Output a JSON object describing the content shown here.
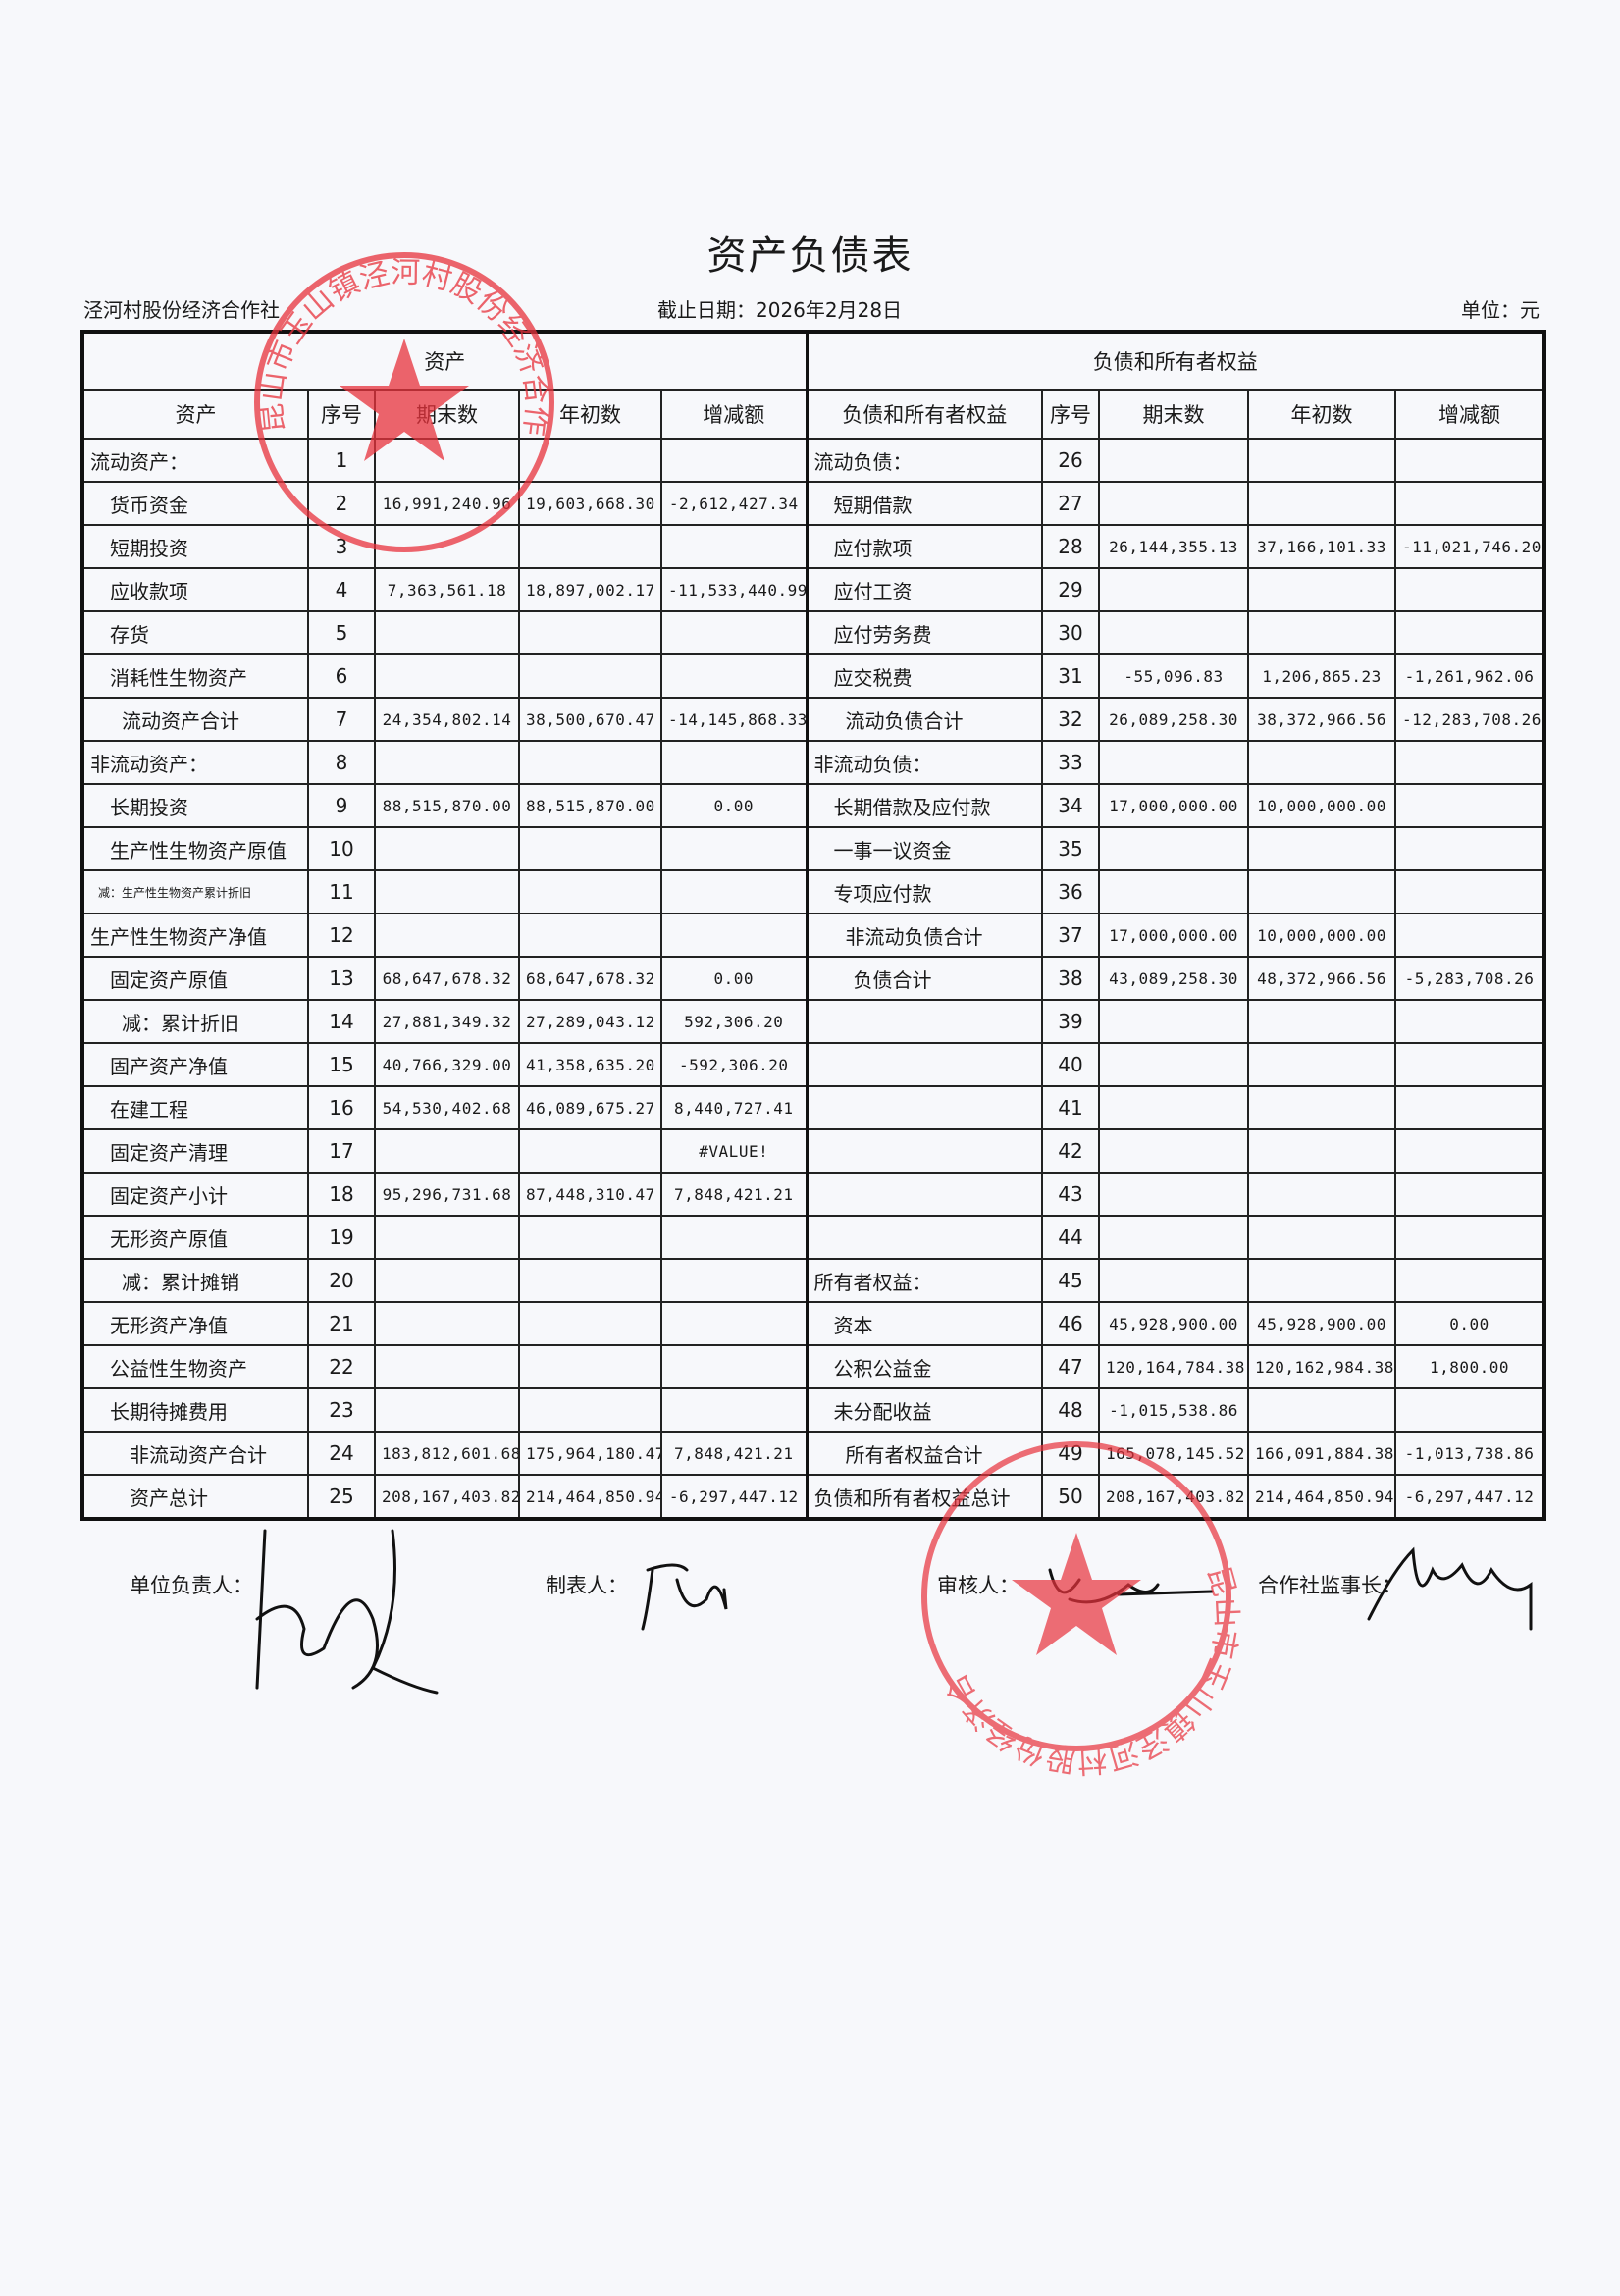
{
  "title": "资产负债表",
  "organization": "泾河村股份经济合作社",
  "date_line": "截止日期：2026年2月28日",
  "unit": "单位：元",
  "stamp_color": "#e8323c",
  "assets_section": {
    "group_header": "资产",
    "columns": [
      "资产",
      "序号",
      "期末数",
      "年初数",
      "增减额"
    ],
    "rows": [
      [
        "流动资产：",
        "1",
        "",
        "",
        ""
      ],
      [
        "货币资金",
        "2",
        "16,991,240.96",
        "19,603,668.30",
        "-2,612,427.34"
      ],
      [
        "短期投资",
        "3",
        "",
        "",
        ""
      ],
      [
        "应收款项",
        "4",
        "7,363,561.18",
        "18,897,002.17",
        "-11,533,440.99"
      ],
      [
        "存货",
        "5",
        "",
        "",
        ""
      ],
      [
        "消耗性生物资产",
        "6",
        "",
        "",
        ""
      ],
      [
        "流动资产合计",
        "7",
        "24,354,802.14",
        "38,500,670.47",
        "-14,145,868.33"
      ],
      [
        "非流动资产：",
        "8",
        "",
        "",
        ""
      ],
      [
        "长期投资",
        "9",
        "88,515,870.00",
        "88,515,870.00",
        "0.00"
      ],
      [
        "生产性生物资产原值",
        "10",
        "",
        "",
        ""
      ],
      [
        "减：生产性生物资产累计折旧",
        "11",
        "",
        "",
        ""
      ],
      [
        "生产性生物资产净值",
        "12",
        "",
        "",
        ""
      ],
      [
        "固定资产原值",
        "13",
        "68,647,678.32",
        "68,647,678.32",
        "0.00"
      ],
      [
        "减：累计折旧",
        "14",
        "27,881,349.32",
        "27,289,043.12",
        "592,306.20"
      ],
      [
        "固产资产净值",
        "15",
        "40,766,329.00",
        "41,358,635.20",
        "-592,306.20"
      ],
      [
        "在建工程",
        "16",
        "54,530,402.68",
        "46,089,675.27",
        "8,440,727.41"
      ],
      [
        "固定资产清理",
        "17",
        "",
        "",
        "#VALUE!"
      ],
      [
        "固定资产小计",
        "18",
        "95,296,731.68",
        "87,448,310.47",
        "7,848,421.21"
      ],
      [
        "无形资产原值",
        "19",
        "",
        "",
        ""
      ],
      [
        "减：累计摊销",
        "20",
        "",
        "",
        ""
      ],
      [
        "无形资产净值",
        "21",
        "",
        "",
        ""
      ],
      [
        "公益性生物资产",
        "22",
        "",
        "",
        ""
      ],
      [
        "长期待摊费用",
        "23",
        "",
        "",
        ""
      ],
      [
        "非流动资产合计",
        "24",
        "183,812,601.68",
        "175,964,180.47",
        "7,848,421.21"
      ],
      [
        "资产总计",
        "25",
        "208,167,403.82",
        "214,464,850.94",
        "-6,297,447.12"
      ]
    ]
  },
  "liabilities_section": {
    "group_header": "负债和所有者权益",
    "columns": [
      "负债和所有者权益",
      "序号",
      "期末数",
      "年初数",
      "增减额"
    ],
    "rows": [
      [
        "流动负债：",
        "26",
        "",
        "",
        ""
      ],
      [
        "短期借款",
        "27",
        "",
        "",
        ""
      ],
      [
        "应付款项",
        "28",
        "26,144,355.13",
        "37,166,101.33",
        "-11,021,746.20"
      ],
      [
        "应付工资",
        "29",
        "",
        "",
        ""
      ],
      [
        "应付劳务费",
        "30",
        "",
        "",
        ""
      ],
      [
        "应交税费",
        "31",
        "-55,096.83",
        "1,206,865.23",
        "-1,261,962.06"
      ],
      [
        "流动负债合计",
        "32",
        "26,089,258.30",
        "38,372,966.56",
        "-12,283,708.26"
      ],
      [
        "非流动负债：",
        "33",
        "",
        "",
        ""
      ],
      [
        "长期借款及应付款",
        "34",
        "17,000,000.00",
        "10,000,000.00",
        ""
      ],
      [
        "一事一议资金",
        "35",
        "",
        "",
        ""
      ],
      [
        "专项应付款",
        "36",
        "",
        "",
        ""
      ],
      [
        "非流动负债合计",
        "37",
        "17,000,000.00",
        "10,000,000.00",
        ""
      ],
      [
        "负债合计",
        "38",
        "43,089,258.30",
        "48,372,966.56",
        "-5,283,708.26"
      ],
      [
        "",
        "39",
        "",
        "",
        ""
      ],
      [
        "",
        "40",
        "",
        "",
        ""
      ],
      [
        "",
        "41",
        "",
        "",
        ""
      ],
      [
        "",
        "42",
        "",
        "",
        ""
      ],
      [
        "",
        "43",
        "",
        "",
        ""
      ],
      [
        "",
        "44",
        "",
        "",
        ""
      ],
      [
        "所有者权益：",
        "45",
        "",
        "",
        ""
      ],
      [
        "资本",
        "46",
        "45,928,900.00",
        "45,928,900.00",
        "0.00"
      ],
      [
        "公积公益金",
        "47",
        "120,164,784.38",
        "120,162,984.38",
        "1,800.00"
      ],
      [
        "未分配收益",
        "48",
        "-1,015,538.86",
        "",
        ""
      ],
      [
        "所有者权益合计",
        "49",
        "165,078,145.52",
        "166,091,884.38",
        "-1,013,738.86"
      ],
      [
        "负债和所有者权益总计",
        "50",
        "208,167,403.82",
        "214,464,850.94",
        "-6,297,447.12"
      ]
    ]
  },
  "signatures": {
    "unit_head_label": "单位负责人：",
    "preparer_label": "制表人：",
    "reviewer_label": "审核人：",
    "supervisor_label": "合作社监事长："
  },
  "stamps": [
    {
      "text": "昆山市玉山镇泾河村股份经济合作社"
    },
    {
      "text": "昆山市玉山镇泾河村股份经济合作社"
    }
  ]
}
